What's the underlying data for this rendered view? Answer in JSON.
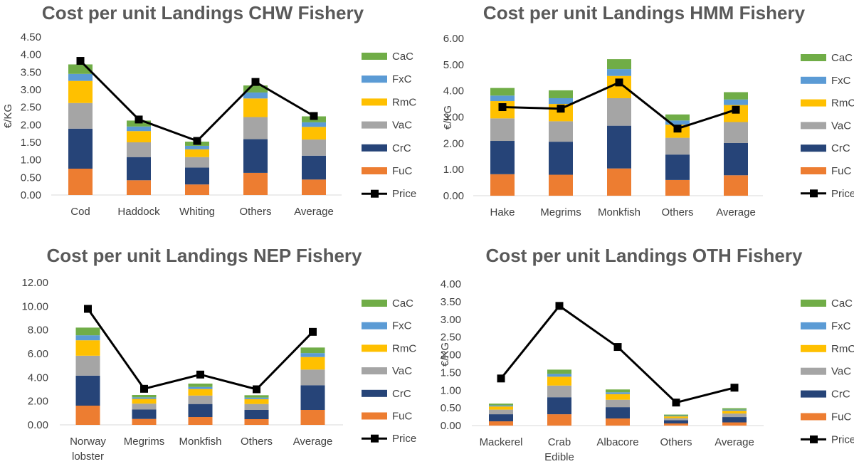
{
  "colors": {
    "FuC": "#ED7D31",
    "CrC": "#264478",
    "VaC": "#A5A5A5",
    "RmC": "#FFC000",
    "FxC": "#5B9BD5",
    "CaC": "#70AD47",
    "Price": "#000000",
    "axis": "#D9D9D9",
    "text": "#404040",
    "title": "#595959"
  },
  "chart_data": [
    {
      "type": "bar",
      "stacked": true,
      "title": "Cost per unit Landings CHW Fishery",
      "ylabel": "€/KG",
      "xlabel": "",
      "ylim": [
        0,
        4.5
      ],
      "ytick_step": 0.5,
      "ytick_labels": [
        "0.00",
        "0.50",
        "1.00",
        "1.50",
        "2.00",
        "2.50",
        "3.00",
        "3.50",
        "4.00",
        "4.50"
      ],
      "categories": [
        [
          "Cod"
        ],
        [
          "Haddock"
        ],
        [
          "Whiting"
        ],
        [
          "Others"
        ],
        [
          "Average"
        ]
      ],
      "series": [
        {
          "name": "FuC",
          "values": [
            0.75,
            0.42,
            0.3,
            0.63,
            0.44
          ]
        },
        {
          "name": "CrC",
          "values": [
            1.14,
            0.66,
            0.48,
            0.96,
            0.68
          ]
        },
        {
          "name": "VaC",
          "values": [
            0.73,
            0.42,
            0.3,
            0.63,
            0.46
          ]
        },
        {
          "name": "RmC",
          "values": [
            0.63,
            0.32,
            0.22,
            0.53,
            0.36
          ]
        },
        {
          "name": "FxC",
          "values": [
            0.2,
            0.13,
            0.1,
            0.17,
            0.13
          ]
        },
        {
          "name": "CaC",
          "values": [
            0.27,
            0.17,
            0.12,
            0.2,
            0.17
          ]
        }
      ],
      "line": {
        "name": "Price",
        "values": [
          3.82,
          2.15,
          1.54,
          3.22,
          2.25
        ]
      },
      "legend": [
        "CaC",
        "FxC",
        "RmC",
        "VaC",
        "CrC",
        "FuC",
        "Price"
      ],
      "legend_position": "right"
    },
    {
      "type": "bar",
      "stacked": true,
      "title": "Cost per unit Landings HMM Fishery",
      "ylabel": "€/KG",
      "xlabel": "",
      "ylim": [
        0,
        6
      ],
      "ytick_step": 1,
      "ytick_labels": [
        "0.00",
        "1.00",
        "2.00",
        "3.00",
        "4.00",
        "5.00",
        "6.00"
      ],
      "categories": [
        [
          "Hake"
        ],
        [
          "Megrims"
        ],
        [
          "Monkfish"
        ],
        [
          "Others"
        ],
        [
          "Average"
        ]
      ],
      "series": [
        {
          "name": "FuC",
          "values": [
            0.82,
            0.8,
            1.04,
            0.6,
            0.78
          ]
        },
        {
          "name": "CrC",
          "values": [
            1.27,
            1.26,
            1.63,
            0.97,
            1.23
          ]
        },
        {
          "name": "VaC",
          "values": [
            0.86,
            0.78,
            1.05,
            0.64,
            0.8
          ]
        },
        {
          "name": "RmC",
          "values": [
            0.66,
            0.66,
            0.85,
            0.5,
            0.65
          ]
        },
        {
          "name": "FxC",
          "values": [
            0.21,
            0.22,
            0.26,
            0.16,
            0.21
          ]
        },
        {
          "name": "CaC",
          "values": [
            0.29,
            0.3,
            0.38,
            0.23,
            0.28
          ]
        }
      ],
      "line": {
        "name": "Price",
        "values": [
          3.38,
          3.32,
          4.32,
          2.56,
          3.28
        ]
      },
      "legend": [
        "CaC",
        "FxC",
        "RmC",
        "VaC",
        "CrC",
        "FuC",
        "Price"
      ],
      "legend_position": "right"
    },
    {
      "type": "bar",
      "stacked": true,
      "title": "Cost per unit Landings NEP Fishery",
      "ylabel": "",
      "xlabel": "",
      "ylim": [
        0,
        12
      ],
      "ytick_step": 2,
      "ytick_labels": [
        "0.00",
        "2.00",
        "4.00",
        "6.00",
        "8.00",
        "10.00",
        "12.00"
      ],
      "categories": [
        [
          "Norway",
          "lobster"
        ],
        [
          "Megrims"
        ],
        [
          "Monkfish"
        ],
        [
          "Others"
        ],
        [
          "Average"
        ]
      ],
      "series": [
        {
          "name": "FuC",
          "values": [
            1.62,
            0.5,
            0.66,
            0.48,
            1.26
          ]
        },
        {
          "name": "CrC",
          "values": [
            2.53,
            0.79,
            1.1,
            0.78,
            2.08
          ]
        },
        {
          "name": "VaC",
          "values": [
            1.68,
            0.5,
            0.71,
            0.5,
            1.32
          ]
        },
        {
          "name": "RmC",
          "values": [
            1.3,
            0.4,
            0.55,
            0.41,
            1.06
          ]
        },
        {
          "name": "FxC",
          "values": [
            0.42,
            0.13,
            0.18,
            0.13,
            0.33
          ]
        },
        {
          "name": "CaC",
          "values": [
            0.65,
            0.2,
            0.28,
            0.2,
            0.47
          ]
        }
      ],
      "line": {
        "name": "Price",
        "values": [
          9.78,
          3.04,
          4.24,
          3.0,
          7.84
        ]
      },
      "legend": [
        "CaC",
        "FxC",
        "RmC",
        "VaC",
        "CrC",
        "FuC",
        "Price"
      ],
      "legend_position": "right"
    },
    {
      "type": "bar",
      "stacked": true,
      "title": "Cost per unit Landings OTH Fishery",
      "ylabel": "€/KG",
      "xlabel": "",
      "ylim": [
        0,
        4
      ],
      "ytick_step": 0.5,
      "ytick_labels": [
        "0.00",
        "0.50",
        "1.00",
        "1.50",
        "2.00",
        "2.50",
        "3.00",
        "3.50",
        "4.00"
      ],
      "categories": [
        [
          "Mackerel"
        ],
        [
          "Crab",
          "Edible"
        ],
        [
          "Albacore"
        ],
        [
          "Others"
        ],
        [
          "Average"
        ]
      ],
      "series": [
        {
          "name": "FuC",
          "values": [
            0.12,
            0.32,
            0.2,
            0.06,
            0.09
          ]
        },
        {
          "name": "CrC",
          "values": [
            0.2,
            0.48,
            0.32,
            0.09,
            0.15
          ]
        },
        {
          "name": "VaC",
          "values": [
            0.13,
            0.33,
            0.21,
            0.06,
            0.1
          ]
        },
        {
          "name": "RmC",
          "values": [
            0.09,
            0.25,
            0.16,
            0.05,
            0.08
          ]
        },
        {
          "name": "FxC",
          "values": [
            0.03,
            0.08,
            0.05,
            0.02,
            0.03
          ]
        },
        {
          "name": "CaC",
          "values": [
            0.05,
            0.12,
            0.08,
            0.03,
            0.04
          ]
        }
      ],
      "line": {
        "name": "Price",
        "values": [
          1.33,
          3.38,
          2.22,
          0.65,
          1.07
        ]
      },
      "legend": [
        "CaC",
        "FxC",
        "RmC",
        "VaC",
        "CrC",
        "FuC",
        "Price"
      ],
      "legend_position": "right"
    }
  ]
}
